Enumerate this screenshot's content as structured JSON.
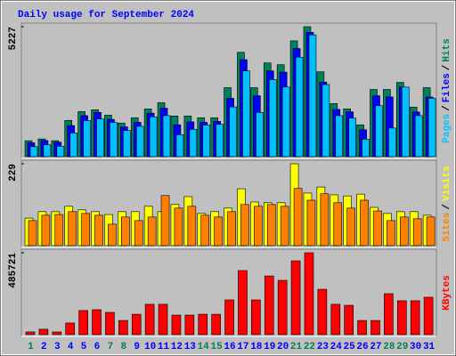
{
  "chart_data": [
    {
      "type": "bar",
      "title": "Daily usage for September 2024",
      "ylim": [
        0,
        5227
      ],
      "yticks": [
        5227
      ],
      "legend_separator": "/",
      "series": [
        {
          "name": "Hits",
          "color": "#00805c",
          "values": [
            640,
            711,
            640,
            1458,
            1813,
            1885,
            1671,
            1351,
            1565,
            1920,
            2169,
            1636,
            1636,
            1565,
            1565,
            2774,
            4196,
            2774,
            3769,
            3698,
            4658,
            5227,
            3414,
            2134,
            1920,
            1280,
            2703,
            2703,
            2987,
            1991,
            2774
          ]
        },
        {
          "name": "Files",
          "color": "#0000ff",
          "values": [
            560,
            650,
            580,
            1250,
            1650,
            1780,
            1500,
            1200,
            1380,
            1750,
            1950,
            1280,
            1400,
            1380,
            1420,
            2350,
            3900,
            2450,
            3450,
            3400,
            4350,
            5000,
            3000,
            1900,
            1800,
            1080,
            2450,
            2400,
            2800,
            1800,
            2400
          ]
        },
        {
          "name": "Pages",
          "color": "#00c0ff",
          "values": [
            400,
            480,
            420,
            950,
            1450,
            1520,
            1380,
            1050,
            1220,
            1600,
            1650,
            880,
            1100,
            1270,
            1300,
            2000,
            3450,
            1780,
            3100,
            2800,
            4000,
            4900,
            2900,
            1650,
            1550,
            700,
            2050,
            1150,
            2800,
            1650,
            2350
          ]
        }
      ]
    },
    {
      "type": "bar",
      "ylim": [
        0,
        229
      ],
      "yticks": [
        229
      ],
      "legend_separator": "/",
      "series": [
        {
          "name": "Visits",
          "color": "#ffff00",
          "values": [
            77,
            95,
            95,
            110,
            100,
            95,
            87,
            95,
            95,
            110,
            95,
            115,
            137,
            90,
            95,
            105,
            159,
            122,
            120,
            120,
            229,
            147,
            164,
            142,
            139,
            144,
            107,
            90,
            95,
            95,
            85
          ]
        },
        {
          "name": "Sites",
          "color": "#ff8000",
          "values": [
            70,
            85,
            87,
            95,
            90,
            85,
            60,
            80,
            70,
            80,
            140,
            105,
            110,
            85,
            80,
            95,
            115,
            110,
            115,
            110,
            160,
            127,
            145,
            120,
            105,
            127,
            97,
            70,
            80,
            75,
            80
          ]
        }
      ]
    },
    {
      "type": "bar",
      "ylim": [
        0,
        485721
      ],
      "yticks": [
        485721
      ],
      "categories": [
        "1",
        "2",
        "3",
        "4",
        "5",
        "6",
        "7",
        "8",
        "9",
        "10",
        "11",
        "12",
        "13",
        "14",
        "15",
        "16",
        "17",
        "18",
        "19",
        "20",
        "21",
        "22",
        "23",
        "24",
        "25",
        "26",
        "27",
        "28",
        "29",
        "30",
        "31"
      ],
      "category_colors": [
        "#00805c",
        "#0000ff",
        "#0000ff",
        "#0000ff",
        "#0000ff",
        "#0000ff",
        "#00805c",
        "#00805c",
        "#0000ff",
        "#0000ff",
        "#0000ff",
        "#0000ff",
        "#0000ff",
        "#00805c",
        "#00805c",
        "#0000ff",
        "#0000ff",
        "#0000ff",
        "#0000ff",
        "#0000ff",
        "#00805c",
        "#00805c",
        "#0000ff",
        "#0000ff",
        "#0000ff",
        "#0000ff",
        "#0000ff",
        "#00805c",
        "#00805c",
        "#0000ff",
        "#0000ff"
      ],
      "series": [
        {
          "name": "KBytes",
          "color": "#ff0000",
          "values": [
            16000,
            32000,
            16000,
            69000,
            143000,
            148000,
            132000,
            84000,
            121000,
            180000,
            180000,
            116000,
            116000,
            121000,
            121000,
            206000,
            380000,
            206000,
            348000,
            322000,
            438000,
            485721,
            269000,
            180000,
            174000,
            84000,
            84000,
            243000,
            201000,
            201000,
            222000
          ]
        }
      ]
    }
  ]
}
